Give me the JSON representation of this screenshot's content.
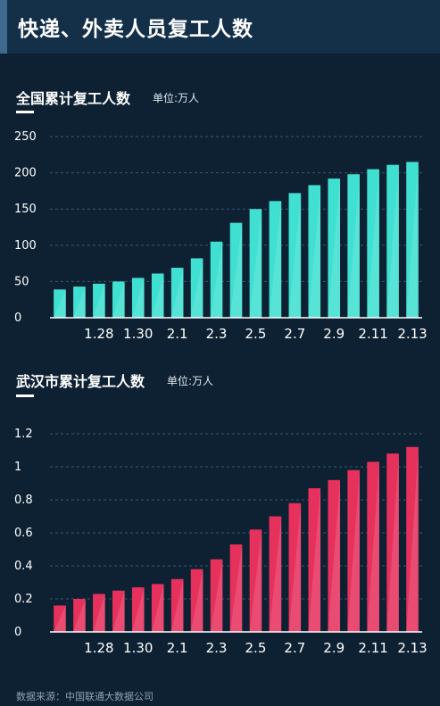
{
  "header": {
    "title": "快递、外卖人员复工人数"
  },
  "source": "数据来源：中国联通大数据公司",
  "colors": {
    "background": "#0d2133",
    "header": "#143049",
    "teal": "#3fe0d2",
    "red": "#e6315d",
    "grid": "#3c566c"
  },
  "chart_data": [
    {
      "type": "bar",
      "title": "全国累计复工人数",
      "unit": "单位:万人",
      "ylim": [
        0,
        250
      ],
      "yticks": [
        0,
        50,
        100,
        150,
        200,
        250
      ],
      "ytick_labels": [
        "0",
        "50",
        "100",
        "150",
        "200",
        "250"
      ],
      "categories": [
        "1.26",
        "1.27",
        "1.28",
        "1.29",
        "1.30",
        "1.31",
        "2.1",
        "2.2",
        "2.3",
        "2.4",
        "2.5",
        "2.6",
        "2.7",
        "2.8",
        "2.9",
        "2.10",
        "2.11",
        "2.12",
        "2.13"
      ],
      "xtick_labels": [
        "1.28",
        "1.30",
        "2.1",
        "2.3",
        "2.5",
        "2.7",
        "2.9",
        "2.11",
        "2.13"
      ],
      "values": [
        39,
        43,
        47,
        50,
        55,
        61,
        69,
        82,
        105,
        131,
        150,
        161,
        172,
        183,
        192,
        198,
        205,
        211,
        215
      ],
      "color": "#3fe0d2",
      "grid": true
    },
    {
      "type": "bar",
      "title": "武汉市累计复工人数",
      "unit": "单位:万人",
      "ylim": [
        0,
        1.2
      ],
      "yticks": [
        0,
        0.2,
        0.4,
        0.6,
        0.8,
        1.0,
        1.2
      ],
      "ytick_labels": [
        "0",
        "0.2",
        "0.4",
        "0.6",
        "0.8",
        "1",
        "1.2"
      ],
      "categories": [
        "1.26",
        "1.27",
        "1.28",
        "1.29",
        "1.30",
        "1.31",
        "2.1",
        "2.2",
        "2.3",
        "2.4",
        "2.5",
        "2.6",
        "2.7",
        "2.8",
        "2.9",
        "2.10",
        "2.11",
        "2.12",
        "2.13"
      ],
      "xtick_labels": [
        "1.28",
        "1.30",
        "2.1",
        "2.3",
        "2.5",
        "2.7",
        "2.9",
        "2.11",
        "2.13"
      ],
      "values": [
        0.16,
        0.2,
        0.23,
        0.25,
        0.27,
        0.29,
        0.32,
        0.38,
        0.44,
        0.53,
        0.62,
        0.7,
        0.78,
        0.87,
        0.92,
        0.98,
        1.03,
        1.08,
        1.12
      ],
      "color": "#e6315d",
      "grid": true
    }
  ]
}
